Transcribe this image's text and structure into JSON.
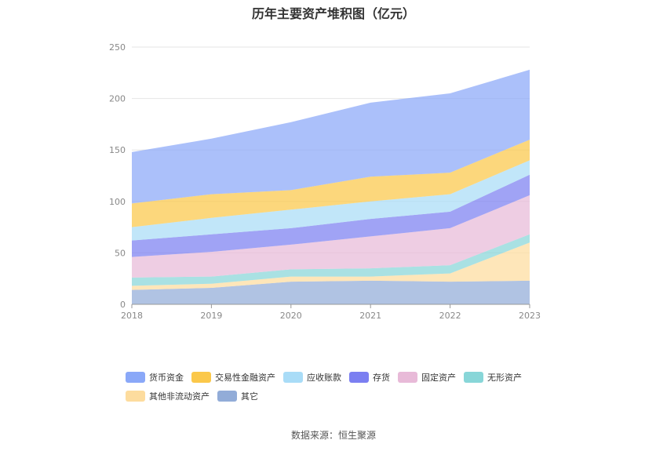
{
  "chart_data": {
    "type": "area",
    "stacked": true,
    "title": "历年主要资产堆积图（亿元）",
    "x": [
      "2018",
      "2019",
      "2020",
      "2021",
      "2022",
      "2023"
    ],
    "ylim": [
      0,
      250
    ],
    "yticks": [
      "0",
      "50",
      "100",
      "150",
      "200",
      "250"
    ],
    "grid": true,
    "legend_position": "bottom",
    "series": [
      {
        "name": "货币资金",
        "color": "#8aa8f8",
        "values": [
          50,
          54,
          66,
          72,
          77,
          68
        ]
      },
      {
        "name": "交易性金融资产",
        "color": "#fbc84a",
        "values": [
          23,
          23,
          19,
          24,
          21,
          20
        ]
      },
      {
        "name": "应收账款",
        "color": "#a9dcf7",
        "values": [
          13,
          16,
          18,
          17,
          17,
          14
        ]
      },
      {
        "name": "存货",
        "color": "#7b7ff1",
        "values": [
          16,
          17,
          16,
          17,
          16,
          20
        ]
      },
      {
        "name": "固定资产",
        "color": "#e8bad8",
        "values": [
          20,
          24,
          24,
          31,
          36,
          38
        ]
      },
      {
        "name": "无形资产",
        "color": "#88d6d8",
        "values": [
          8,
          7,
          7,
          8,
          8,
          8
        ]
      },
      {
        "name": "其他非流动资产",
        "color": "#fddc9e",
        "values": [
          4,
          4,
          5,
          4,
          8,
          37
        ]
      },
      {
        "name": "其它",
        "color": "#92acd8",
        "values": [
          14,
          16,
          22,
          23,
          22,
          23
        ]
      }
    ]
  },
  "source": "数据来源：恒生聚源"
}
